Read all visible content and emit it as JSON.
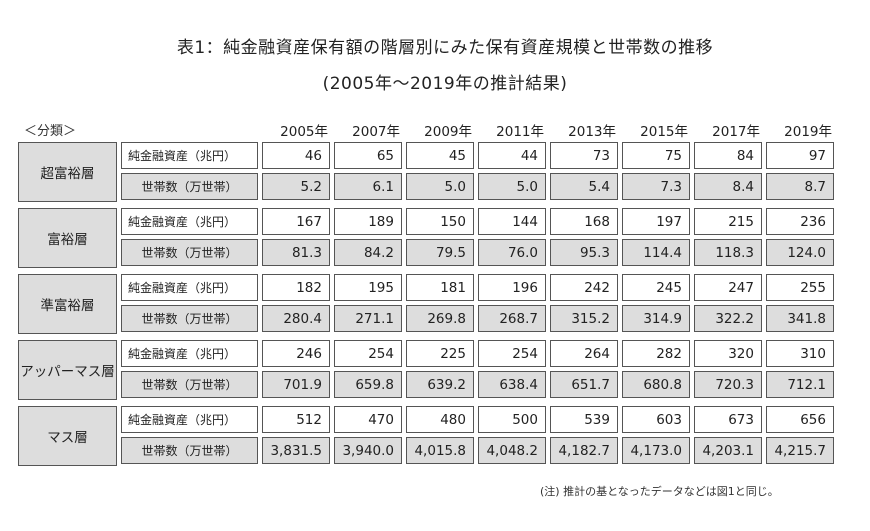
{
  "title": {
    "line1": "表1：純金融資産保有額の階層別にみた保有資産規模と世帯数の推移",
    "line2": "(2005年〜2019年の推計結果)"
  },
  "table": {
    "category_header": "＜分類＞",
    "years": [
      "2005年",
      "2007年",
      "2009年",
      "2011年",
      "2013年",
      "2015年",
      "2017年",
      "2019年"
    ],
    "row_labels": {
      "assets": "純金融資産（兆円）",
      "households": "世帯数（万世帯）"
    },
    "groups": [
      {
        "name": "超富裕層",
        "assets": [
          "46",
          "65",
          "45",
          "44",
          "73",
          "75",
          "84",
          "97"
        ],
        "households": [
          "5.2",
          "6.1",
          "5.0",
          "5.0",
          "5.4",
          "7.3",
          "8.4",
          "8.7"
        ]
      },
      {
        "name": "富裕層",
        "assets": [
          "167",
          "189",
          "150",
          "144",
          "168",
          "197",
          "215",
          "236"
        ],
        "households": [
          "81.3",
          "84.2",
          "79.5",
          "76.0",
          "95.3",
          "114.4",
          "118.3",
          "124.0"
        ]
      },
      {
        "name": "準富裕層",
        "assets": [
          "182",
          "195",
          "181",
          "196",
          "242",
          "245",
          "247",
          "255"
        ],
        "households": [
          "280.4",
          "271.1",
          "269.8",
          "268.7",
          "315.2",
          "314.9",
          "322.2",
          "341.8"
        ]
      },
      {
        "name": "アッパーマス層",
        "assets": [
          "246",
          "254",
          "225",
          "254",
          "264",
          "282",
          "320",
          "310"
        ],
        "households": [
          "701.9",
          "659.8",
          "639.2",
          "638.4",
          "651.7",
          "680.8",
          "720.3",
          "712.1"
        ]
      },
      {
        "name": "マス層",
        "assets": [
          "512",
          "470",
          "480",
          "500",
          "539",
          "603",
          "673",
          "656"
        ],
        "households": [
          "3,831.5",
          "3,940.0",
          "4,015.8",
          "4,048.2",
          "4,182.7",
          "4,173.0",
          "4,203.1",
          "4,215.7"
        ]
      }
    ]
  },
  "note": "(注) 推計の基となったデータなどは図1と同じ。",
  "colors": {
    "gray_cell": "#dddddd",
    "white_cell": "#ffffff",
    "border": "#555555"
  }
}
